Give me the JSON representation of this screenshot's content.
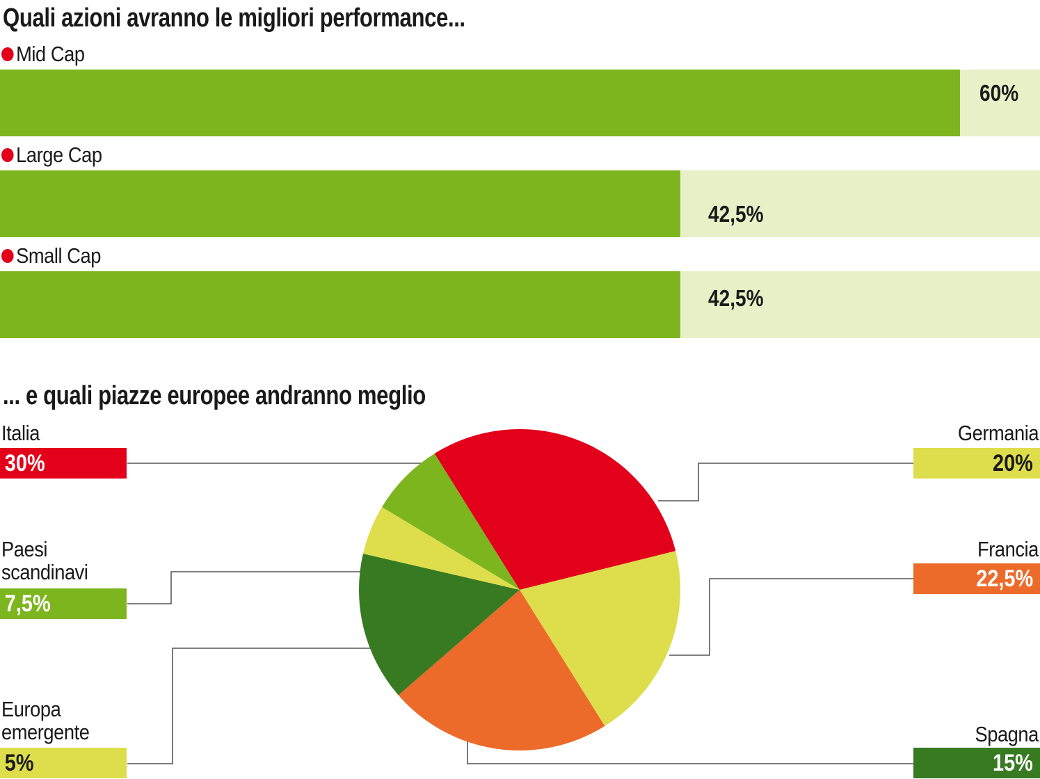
{
  "chart_data": [
    {
      "type": "bar",
      "orientation": "horizontal",
      "title": "Quali azioni avranno le migliori performance...",
      "categories": [
        "Mid Cap",
        "Large Cap",
        "Small Cap"
      ],
      "values": [
        60,
        42.5,
        42.5
      ],
      "value_labels": [
        "60%",
        "42,5%",
        "42,5%"
      ],
      "xlim": [
        0,
        65
      ],
      "grid": false,
      "colors": {
        "fill": "#7db51f",
        "track": "#e8f0c8",
        "marker": "#e2001a"
      }
    },
    {
      "type": "pie",
      "title": "... e quali piazze europee andranno meglio",
      "slices": [
        {
          "label": "Italia",
          "value": 30,
          "value_label": "30%",
          "color": "#e2001a",
          "text_color": "#ffffff"
        },
        {
          "label": "Germania",
          "value": 20,
          "value_label": "20%",
          "color": "#dede4c",
          "text_color": "#1a1a1a"
        },
        {
          "label": "Francia",
          "value": 22.5,
          "value_label": "22,5%",
          "color": "#ec6b2a",
          "text_color": "#ffffff"
        },
        {
          "label": "Spagna",
          "value": 15,
          "value_label": "15%",
          "color": "#377a22",
          "text_color": "#ffffff"
        },
        {
          "label": "Europa\nemergente",
          "value": 5,
          "value_label": "5%",
          "color": "#dede4c",
          "text_color": "#1a1a1a"
        },
        {
          "label": "Paesi\nscandinavi",
          "value": 7.5,
          "value_label": "7,5%",
          "color": "#7db51f",
          "text_color": "#ffffff"
        }
      ]
    }
  ]
}
